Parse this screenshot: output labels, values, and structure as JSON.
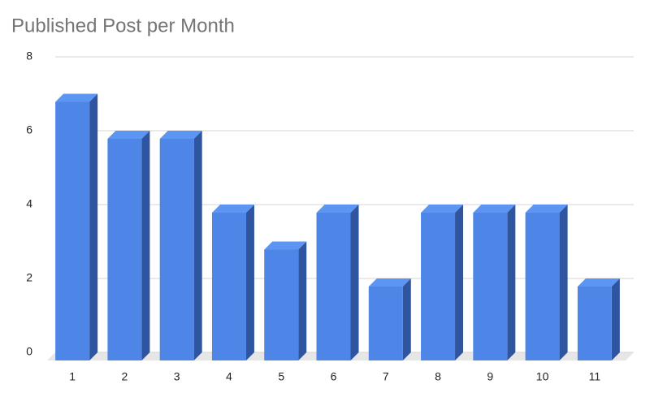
{
  "chart_data": {
    "type": "bar3d",
    "title": "Published Post per Month",
    "categories": [
      "1",
      "2",
      "3",
      "4",
      "5",
      "6",
      "7",
      "8",
      "9",
      "10",
      "11"
    ],
    "values": [
      7,
      6,
      6,
      4,
      3,
      4,
      2,
      4,
      4,
      4,
      2
    ],
    "color": "#4e86e8",
    "ylim": [
      0,
      8
    ],
    "yticks": [
      0,
      2,
      4,
      6,
      8
    ],
    "grid": true
  }
}
